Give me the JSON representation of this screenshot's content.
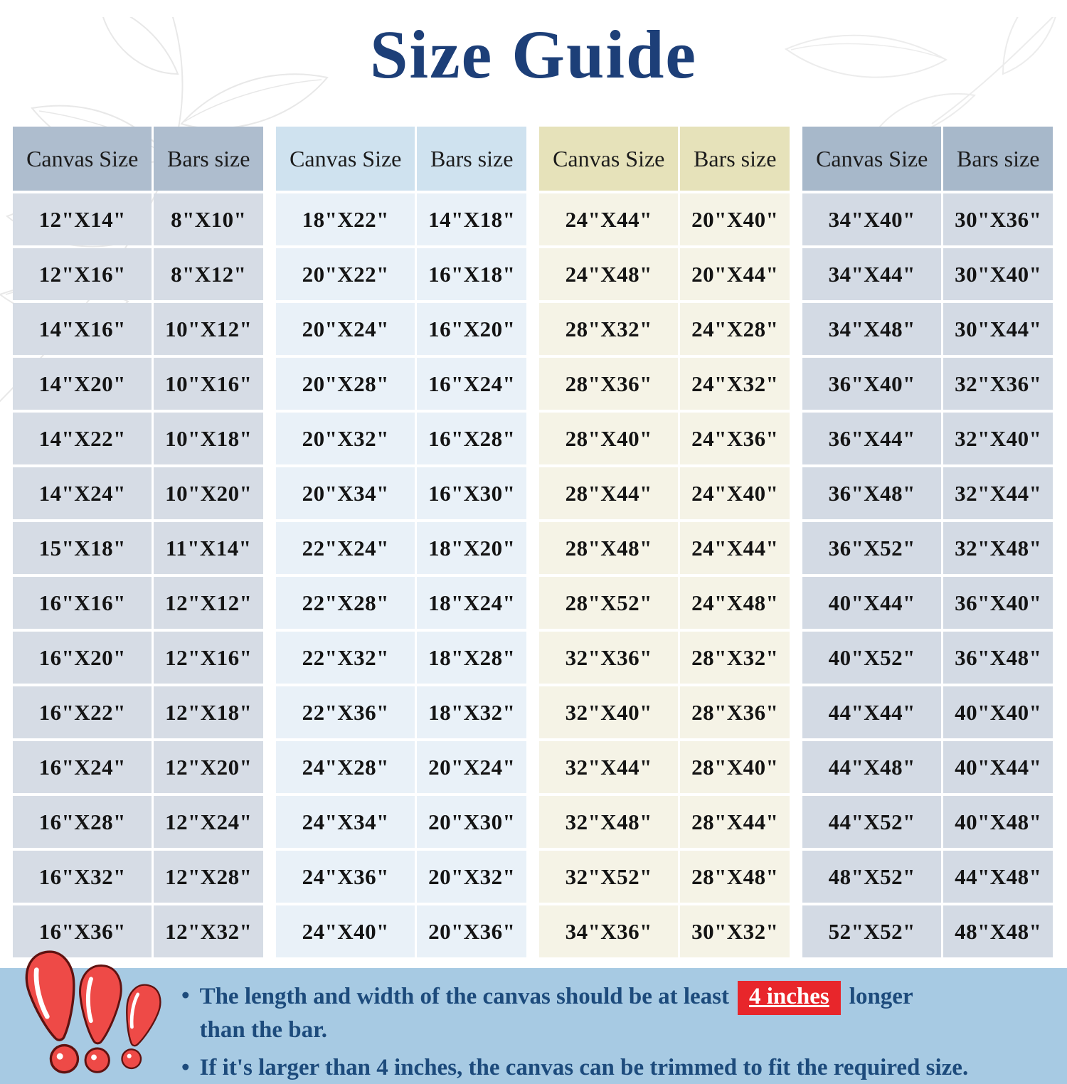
{
  "title": "Size Guide",
  "colors": {
    "title": "#1d3f78",
    "note_text": "#1d4b7c",
    "notes_bg": "#a7cae3",
    "highlight_bg": "#e8262b",
    "highlight_text": "#ffffff",
    "cell_text": "#141414",
    "exclamation_red": "#ee4a47",
    "tables": [
      {
        "header": "#aebdce",
        "row": "#d6dce5"
      },
      {
        "header": "#cfe2ef",
        "row": "#e9f1f8"
      },
      {
        "header": "#e6e2ba",
        "row": "#f5f3e6"
      },
      {
        "header": "#a7b8ca",
        "row": "#d3dae4"
      }
    ]
  },
  "tables": [
    {
      "canvas_header": "Canvas Size",
      "bars_header": "Bars size",
      "rows": [
        [
          "12\"X14\"",
          "8\"X10\""
        ],
        [
          "12\"X16\"",
          "8\"X12\""
        ],
        [
          "14\"X16\"",
          "10\"X12\""
        ],
        [
          "14\"X20\"",
          "10\"X16\""
        ],
        [
          "14\"X22\"",
          "10\"X18\""
        ],
        [
          "14\"X24\"",
          "10\"X20\""
        ],
        [
          "15\"X18\"",
          "11\"X14\""
        ],
        [
          "16\"X16\"",
          "12\"X12\""
        ],
        [
          "16\"X20\"",
          "12\"X16\""
        ],
        [
          "16\"X22\"",
          "12\"X18\""
        ],
        [
          "16\"X24\"",
          "12\"X20\""
        ],
        [
          "16\"X28\"",
          "12\"X24\""
        ],
        [
          "16\"X32\"",
          "12\"X28\""
        ],
        [
          "16\"X36\"",
          "12\"X32\""
        ]
      ]
    },
    {
      "canvas_header": "Canvas Size",
      "bars_header": "Bars size",
      "rows": [
        [
          "18\"X22\"",
          "14\"X18\""
        ],
        [
          "20\"X22\"",
          "16\"X18\""
        ],
        [
          "20\"X24\"",
          "16\"X20\""
        ],
        [
          "20\"X28\"",
          "16\"X24\""
        ],
        [
          "20\"X32\"",
          "16\"X28\""
        ],
        [
          "20\"X34\"",
          "16\"X30\""
        ],
        [
          "22\"X24\"",
          "18\"X20\""
        ],
        [
          "22\"X28\"",
          "18\"X24\""
        ],
        [
          "22\"X32\"",
          "18\"X28\""
        ],
        [
          "22\"X36\"",
          "18\"X32\""
        ],
        [
          "24\"X28\"",
          "20\"X24\""
        ],
        [
          "24\"X34\"",
          "20\"X30\""
        ],
        [
          "24\"X36\"",
          "20\"X32\""
        ],
        [
          "24\"X40\"",
          "20\"X36\""
        ]
      ]
    },
    {
      "canvas_header": "Canvas Size",
      "bars_header": "Bars size",
      "rows": [
        [
          "24\"X44\"",
          "20\"X40\""
        ],
        [
          "24\"X48\"",
          "20\"X44\""
        ],
        [
          "28\"X32\"",
          "24\"X28\""
        ],
        [
          "28\"X36\"",
          "24\"X32\""
        ],
        [
          "28\"X40\"",
          "24\"X36\""
        ],
        [
          "28\"X44\"",
          "24\"X40\""
        ],
        [
          "28\"X48\"",
          "24\"X44\""
        ],
        [
          "28\"X52\"",
          "24\"X48\""
        ],
        [
          "32\"X36\"",
          "28\"X32\""
        ],
        [
          "32\"X40\"",
          "28\"X36\""
        ],
        [
          "32\"X44\"",
          "28\"X40\""
        ],
        [
          "32\"X48\"",
          "28\"X44\""
        ],
        [
          "32\"X52\"",
          "28\"X48\""
        ],
        [
          "34\"X36\"",
          "30\"X32\""
        ]
      ]
    },
    {
      "canvas_header": "Canvas Size",
      "bars_header": "Bars size",
      "rows": [
        [
          "34\"X40\"",
          "30\"X36\""
        ],
        [
          "34\"X44\"",
          "30\"X40\""
        ],
        [
          "34\"X48\"",
          "30\"X44\""
        ],
        [
          "36\"X40\"",
          "32\"X36\""
        ],
        [
          "36\"X44\"",
          "32\"X40\""
        ],
        [
          "36\"X48\"",
          "32\"X44\""
        ],
        [
          "36\"X52\"",
          "32\"X48\""
        ],
        [
          "40\"X44\"",
          "36\"X40\""
        ],
        [
          "40\"X52\"",
          "36\"X48\""
        ],
        [
          "44\"X44\"",
          "40\"X40\""
        ],
        [
          "44\"X48\"",
          "40\"X44\""
        ],
        [
          "44\"X52\"",
          "40\"X48\""
        ],
        [
          "48\"X52\"",
          "44\"X48\""
        ],
        [
          "52\"X52\"",
          "48\"X48\""
        ]
      ]
    }
  ],
  "notes": {
    "bullet_char": "•",
    "bullet1_line1_pre": "The length and width of the canvas should be at least",
    "bullet1_highlight": "4 inches",
    "bullet1_line1_post": "longer",
    "bullet1_line2": "than the bar.",
    "bullet2": "If it's larger than 4 inches, the canvas can be trimmed to fit the required size."
  }
}
